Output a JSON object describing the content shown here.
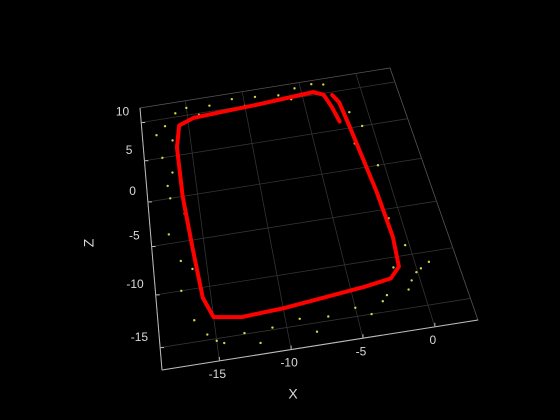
{
  "chart_data": {
    "type": "scatter3d",
    "xlabel": "X",
    "zlabel": "Z",
    "xlim": [
      -19,
      3
    ],
    "zlim": [
      -17,
      12
    ],
    "xticks": [
      -15,
      -10,
      -5,
      0
    ],
    "zticks": [
      -15,
      -10,
      -5,
      0,
      5,
      10
    ],
    "grid": true,
    "series": [
      {
        "mode": "markers",
        "color": "#d4d44a",
        "x": [
          -17,
          -16.5,
          -17.5,
          -16.8,
          -17.2,
          -16.2,
          -17.6,
          -16.9,
          -17.1,
          -16.4,
          -15,
          -13,
          -11,
          -9,
          -7,
          -5.5,
          -4,
          -3,
          -14,
          -10,
          -6,
          -2.2,
          -1.5,
          -0.8,
          -1.8,
          -0.5,
          -1.2,
          -0.9,
          -0.3,
          -1.6,
          0.3,
          -0.6,
          -1,
          -3,
          -5,
          -7,
          -9,
          -11,
          -13,
          -15,
          -14.5,
          -12,
          -8,
          -4,
          -16,
          -17.8,
          -15.6,
          -2.6,
          -0.1,
          1,
          -17.3,
          -16.1
        ],
        "z": [
          9,
          7,
          5,
          3,
          0,
          -2,
          -4,
          -7,
          -10,
          -13,
          11,
          10.8,
          11.2,
          11,
          10.7,
          11.3,
          11.5,
          11.2,
          9.8,
          10,
          9.9,
          9,
          7,
          5,
          3,
          0,
          -3,
          -6,
          -9,
          -11,
          -11.5,
          -12.5,
          -13.3,
          -14,
          -14.2,
          -14.6,
          -14.4,
          -14.8,
          -14.9,
          -15.2,
          -15.5,
          -16,
          -15.8,
          -15,
          10.5,
          8,
          -14.5,
          -13.5,
          -11.8,
          -11,
          1.5,
          -8
        ]
      },
      {
        "mode": "line",
        "color": "#ff0000",
        "x": [
          -2.5,
          -2.8,
          -3.2,
          -4,
          -6,
          -9,
          -12,
          -14.5,
          -15.8,
          -16.2,
          -16.2,
          -15.9,
          -15.6,
          -15,
          -13,
          -10,
          -7,
          -4,
          -2,
          -1.2,
          -1,
          -1.2,
          -1.5,
          -1.8,
          -2.1,
          -2.5
        ],
        "z": [
          6,
          8,
          9.8,
          10.4,
          10.2,
          9.9,
          9.7,
          9.5,
          8.8,
          6,
          0,
          -6,
          -11,
          -13,
          -13.4,
          -13.2,
          -12.8,
          -12.4,
          -12,
          -11,
          -8,
          -3,
          1,
          5,
          8.5,
          9.6
        ]
      }
    ]
  }
}
